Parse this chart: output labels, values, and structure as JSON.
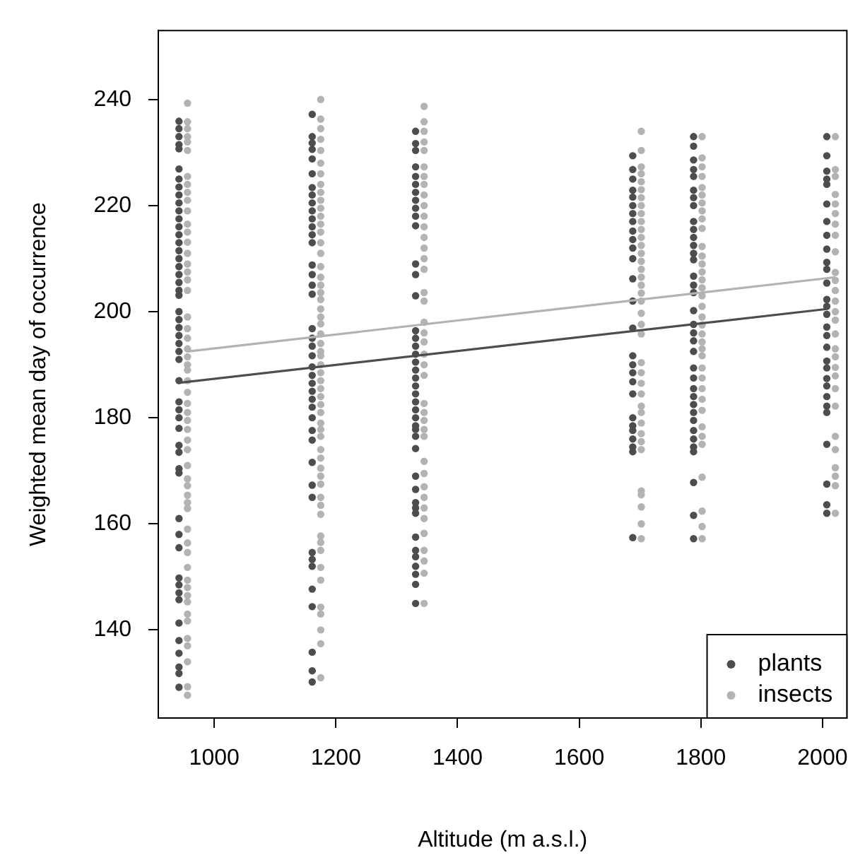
{
  "chart_data": {
    "type": "scatter",
    "xlabel": "Altitude (m a.s.l.)",
    "ylabel": "Weighted mean day of occurrence",
    "xlim": [
      908,
      2040
    ],
    "ylim": [
      123.4,
      253
    ],
    "xticks": [
      1000,
      1200,
      1400,
      1600,
      1800,
      2000
    ],
    "yticks": [
      140,
      160,
      180,
      200,
      220,
      240
    ],
    "legend": "bottom right",
    "marker": "circle",
    "series": [
      {
        "name": "plants",
        "color": "#4d4d4d",
        "x": [
          942,
          942,
          942,
          942,
          942,
          942,
          942,
          942,
          942,
          942,
          942,
          942,
          942,
          942,
          942,
          942,
          942,
          942,
          942,
          942,
          942,
          942,
          942,
          942,
          942,
          942,
          942,
          942,
          942,
          942,
          942,
          942,
          942,
          942,
          942,
          942,
          942,
          942,
          942,
          942,
          942,
          942,
          942,
          942,
          942,
          942,
          942,
          942,
          942,
          942,
          942,
          1161,
          1161,
          1161,
          1161,
          1161,
          1161,
          1161,
          1161,
          1161,
          1161,
          1161,
          1161,
          1161,
          1161,
          1161,
          1161,
          1161,
          1161,
          1161,
          1161,
          1161,
          1161,
          1161,
          1161,
          1161,
          1161,
          1161,
          1161,
          1161,
          1161,
          1161,
          1161,
          1161,
          1161,
          1161,
          1161,
          1161,
          1161,
          1161,
          1161,
          1161,
          1161,
          1331,
          1331,
          1331,
          1331,
          1331,
          1331,
          1331,
          1331,
          1331,
          1331,
          1331,
          1331,
          1331,
          1331,
          1331,
          1331,
          1331,
          1331,
          1331,
          1331,
          1331,
          1331,
          1331,
          1331,
          1331,
          1331,
          1331,
          1331,
          1331,
          1331,
          1331,
          1331,
          1331,
          1331,
          1331,
          1331,
          1331,
          1331,
          1331,
          1331,
          1331,
          1331,
          1688,
          1688,
          1688,
          1688,
          1688,
          1688,
          1688,
          1688,
          1688,
          1688,
          1688,
          1688,
          1688,
          1688,
          1688,
          1688,
          1688,
          1688,
          1688,
          1688,
          1688,
          1688,
          1688,
          1688,
          1688,
          1688,
          1688,
          1788,
          1788,
          1788,
          1788,
          1788,
          1788,
          1788,
          1788,
          1788,
          1788,
          1788,
          1788,
          1788,
          1788,
          1788,
          1788,
          1788,
          1788,
          1788,
          1788,
          1788,
          1788,
          1788,
          1788,
          1788,
          1788,
          1788,
          1788,
          1788,
          1788,
          1788,
          1788,
          1788,
          1788,
          1788,
          1788,
          2007,
          2007,
          2007,
          2007,
          2007,
          2007,
          2007,
          2007,
          2007,
          2007,
          2007,
          2007,
          2007,
          2007,
          2007,
          2007,
          2007,
          2007,
          2007,
          2007,
          2007,
          2007,
          2007,
          2007,
          2007,
          2007,
          2007,
          2007,
          2007
        ],
        "values": [
          235.9,
          234.5,
          233,
          231.5,
          230.7,
          226.9,
          225,
          223.5,
          222,
          220.5,
          219,
          217.5,
          216,
          214.5,
          213,
          211.5,
          210,
          208.5,
          207,
          205.5,
          204,
          203.1,
          200,
          198.5,
          197,
          195.5,
          194,
          192.5,
          191,
          187,
          183,
          181.5,
          180,
          178,
          174.8,
          173.5,
          170.4,
          169.6,
          161,
          158,
          155.5,
          149.8,
          148.5,
          147,
          145.7,
          141.3,
          138,
          135.6,
          133,
          131.8,
          129.2,
          237.2,
          233,
          231.8,
          230.6,
          228.8,
          226,
          223.4,
          222,
          220.5,
          219,
          217.5,
          216,
          214.5,
          213,
          208.8,
          207,
          205,
          203.3,
          196.8,
          195,
          193.5,
          191.7,
          189.6,
          188,
          186.5,
          185,
          183.5,
          182,
          180,
          177.6,
          175.8,
          171.6,
          167.3,
          165,
          154.6,
          153.3,
          152,
          147.7,
          144.4,
          135.8,
          132.3,
          130.2,
          234,
          231.7,
          230.4,
          227.3,
          225.5,
          224,
          222.5,
          221,
          219.5,
          218,
          216.2,
          209,
          207,
          203,
          196.4,
          195,
          193.5,
          192,
          190.5,
          189,
          187.5,
          186,
          184.5,
          183,
          181.5,
          180,
          178.5,
          177.8,
          176.5,
          174.2,
          169,
          166.5,
          164,
          163,
          162,
          157.5,
          155,
          153.8,
          152,
          150.5,
          148.6,
          145,
          229.4,
          226.8,
          225,
          222.9,
          221.6,
          220,
          218.5,
          217,
          215.2,
          213.6,
          212,
          210,
          206.2,
          202,
          196.9,
          191.7,
          190,
          188.5,
          186.8,
          184.5,
          180,
          178.5,
          177.6,
          176,
          174.5,
          173.6,
          157.4,
          233,
          231.2,
          228.6,
          226.8,
          225.5,
          222.9,
          221.5,
          220,
          217,
          215.5,
          214,
          212.5,
          211,
          209.8,
          206.7,
          205,
          203.6,
          200.2,
          197.6,
          196,
          194.5,
          192.5,
          189.4,
          187.5,
          185.5,
          184,
          182.5,
          181,
          179.5,
          177.6,
          176,
          174.5,
          173.6,
          167.8,
          161.6,
          157.2,
          233,
          229.4,
          226.5,
          225,
          224,
          220.3,
          217,
          214.4,
          211.8,
          209.3,
          208,
          205.4,
          202.3,
          201,
          199.5,
          197.1,
          195.5,
          193.3,
          190.7,
          189.4,
          187.4,
          186,
          184,
          182.2,
          181,
          175,
          167.5,
          163.6,
          162
        ]
      },
      {
        "name": "insects",
        "color": "#b3b3b3",
        "x": [
          956,
          956,
          956,
          956,
          956,
          956,
          956,
          956,
          956,
          956,
          956,
          956,
          956,
          956,
          956,
          956,
          956,
          956,
          956,
          956,
          956,
          956,
          956,
          956,
          956,
          956,
          956,
          956,
          956,
          956,
          956,
          956,
          956,
          956,
          956,
          956,
          956,
          956,
          956,
          956,
          956,
          956,
          956,
          956,
          956,
          956,
          956,
          956,
          956,
          956,
          956,
          956,
          956,
          956,
          956,
          1175,
          1175,
          1175,
          1175,
          1175,
          1175,
          1175,
          1175,
          1175,
          1175,
          1175,
          1175,
          1175,
          1175,
          1175,
          1175,
          1175,
          1175,
          1175,
          1175,
          1175,
          1175,
          1175,
          1175,
          1175,
          1175,
          1175,
          1175,
          1175,
          1175,
          1175,
          1175,
          1175,
          1175,
          1175,
          1175,
          1175,
          1175,
          1175,
          1175,
          1175,
          1175,
          1175,
          1175,
          1175,
          1175,
          1175,
          1175,
          1175,
          1175,
          1175,
          1175,
          1175,
          1175,
          1175,
          1175,
          1345,
          1345,
          1345,
          1345,
          1345,
          1345,
          1345,
          1345,
          1345,
          1345,
          1345,
          1345,
          1345,
          1345,
          1345,
          1345,
          1345,
          1345,
          1345,
          1345,
          1345,
          1345,
          1345,
          1345,
          1345,
          1345,
          1345,
          1345,
          1345,
          1345,
          1345,
          1345,
          1345,
          1345,
          1345,
          1345,
          1345,
          1345,
          1345,
          1345,
          1702,
          1702,
          1702,
          1702,
          1702,
          1702,
          1702,
          1702,
          1702,
          1702,
          1702,
          1702,
          1702,
          1702,
          1702,
          1702,
          1702,
          1702,
          1702,
          1702,
          1702,
          1702,
          1702,
          1702,
          1702,
          1702,
          1702,
          1702,
          1702,
          1702,
          1702,
          1702,
          1702,
          1702,
          1702,
          1702,
          1702,
          1702,
          1802,
          1802,
          1802,
          1802,
          1802,
          1802,
          1802,
          1802,
          1802,
          1802,
          1802,
          1802,
          1802,
          1802,
          1802,
          1802,
          1802,
          1802,
          1802,
          1802,
          1802,
          1802,
          1802,
          1802,
          1802,
          1802,
          1802,
          1802,
          1802,
          1802,
          1802,
          1802,
          1802,
          1802,
          1802,
          1802,
          2021,
          2021,
          2021,
          2021,
          2021,
          2021,
          2021,
          2021,
          2021,
          2021,
          2021,
          2021,
          2021,
          2021,
          2021,
          2021,
          2021,
          2021,
          2021,
          2021,
          2021,
          2021,
          2021,
          2021,
          2021,
          2021,
          2021,
          2021
        ],
        "values": [
          239.3,
          235.8,
          234.5,
          233,
          232,
          230.4,
          225.5,
          224,
          222.5,
          221,
          219,
          216.5,
          215,
          213.1,
          211,
          209,
          207.5,
          206,
          204,
          199,
          196.8,
          195,
          193,
          191.5,
          190,
          189,
          187,
          184.8,
          182.7,
          181,
          179.5,
          177.8,
          175.8,
          174,
          171,
          168.5,
          167.2,
          165.4,
          164,
          162.9,
          159,
          156.4,
          154.6,
          151.8,
          149.4,
          148,
          146.5,
          145.3,
          143,
          141.7,
          138.4,
          137,
          134,
          129.3,
          127.7,
          240,
          236.3,
          234.5,
          232.5,
          230.4,
          228,
          226,
          224,
          222.5,
          221,
          219.5,
          218,
          216.5,
          215,
          213,
          211,
          208.5,
          206.5,
          205,
          203.6,
          202.3,
          200.5,
          199,
          197.7,
          195.8,
          194,
          192.5,
          191.7,
          190,
          188.5,
          187,
          185.5,
          184,
          182.5,
          181,
          179,
          177.8,
          176.5,
          174,
          172.4,
          170.5,
          169,
          167.5,
          165,
          163.5,
          161.8,
          157.7,
          156.5,
          155,
          151.8,
          149.4,
          144.3,
          143,
          140,
          137.4,
          131,
          238.7,
          235.8,
          234,
          232,
          230.4,
          227.3,
          225.5,
          224,
          222,
          220,
          218,
          216,
          214,
          212,
          210,
          208,
          203.6,
          202,
          198,
          196,
          194.3,
          192,
          190,
          188,
          182.7,
          181,
          179.5,
          177.8,
          176.5,
          171.8,
          169.5,
          167,
          165,
          163,
          161,
          158.2,
          155,
          153,
          150.7,
          145,
          234,
          230.4,
          227.3,
          226,
          224.5,
          223,
          221.5,
          220,
          218.5,
          217,
          215.5,
          214,
          212.5,
          211,
          209.5,
          208,
          206.5,
          205,
          203.5,
          202,
          199.7,
          197.6,
          195.8,
          190.4,
          188.5,
          186.5,
          184.5,
          182.2,
          181,
          179,
          177,
          175.5,
          174,
          166.2,
          165.5,
          163.2,
          160,
          157.2,
          233,
          229,
          227.3,
          225.5,
          223.4,
          222,
          220.5,
          219,
          217.5,
          215.7,
          212.3,
          210.5,
          209,
          207.5,
          206,
          204.5,
          203,
          201,
          199,
          197.5,
          195.8,
          194.3,
          193,
          191.7,
          189.4,
          187.5,
          185.5,
          183.5,
          181.4,
          178.3,
          176.5,
          175,
          168.8,
          162.4,
          159.5,
          157.2,
          233,
          226.8,
          225.5,
          222.1,
          220.3,
          218.5,
          216.5,
          214.4,
          211.3,
          207.4,
          205.9,
          204,
          202,
          200,
          198.4,
          195.8,
          193,
          191.5,
          189.5,
          187.9,
          185.5,
          182.2,
          176.5,
          174,
          170.6,
          169,
          167.2,
          162
        ]
      },
      {
        "type": "line",
        "marker": "none",
        "color": "#4d4d4d",
        "x": [
          942,
          2007
        ],
        "values": [
          186.6,
          200.5
        ]
      },
      {
        "type": "line",
        "marker": "none",
        "color": "#b3b3b3",
        "x": [
          956,
          2021
        ],
        "values": [
          192.5,
          206.5
        ]
      }
    ]
  }
}
